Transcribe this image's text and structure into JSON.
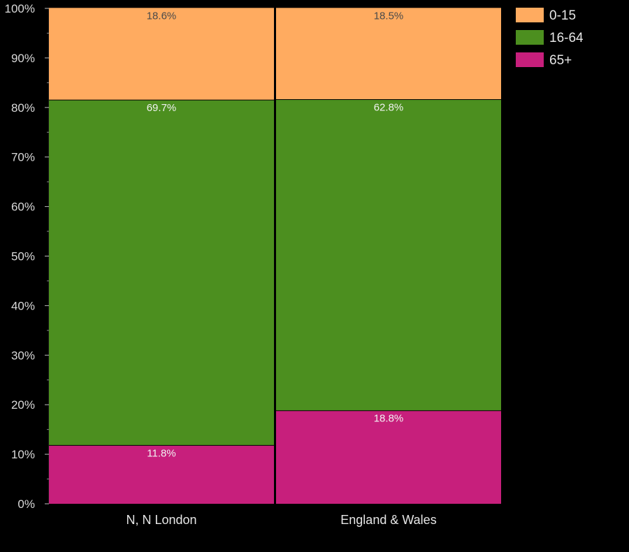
{
  "chart_data": {
    "type": "bar",
    "stacked": true,
    "categories": [
      "N, N London",
      "England & Wales"
    ],
    "series": [
      {
        "name": "65+",
        "values": [
          11.8,
          18.8
        ],
        "labels": [
          "11.8%",
          "18.8%"
        ],
        "color": "#c71f7c",
        "label_color": "#f2f2f2"
      },
      {
        "name": "16-64",
        "values": [
          69.7,
          62.8
        ],
        "labels": [
          "69.7%",
          "62.8%"
        ],
        "color": "#4c8f1f",
        "label_color": "#f2f2f2"
      },
      {
        "name": "0-15",
        "values": [
          18.6,
          18.5
        ],
        "labels": [
          "18.6%",
          "18.5%"
        ],
        "color": "#ffab60",
        "label_color": "#4a4a4a"
      }
    ],
    "legend_order": [
      "0-15",
      "16-64",
      "65+"
    ],
    "ylim": [
      0,
      100
    ],
    "yticks": [
      "0%",
      "10%",
      "20%",
      "30%",
      "40%",
      "50%",
      "60%",
      "70%",
      "80%",
      "90%",
      "100%"
    ],
    "legend_position": "top-right",
    "background": "#000000",
    "grid": false
  }
}
